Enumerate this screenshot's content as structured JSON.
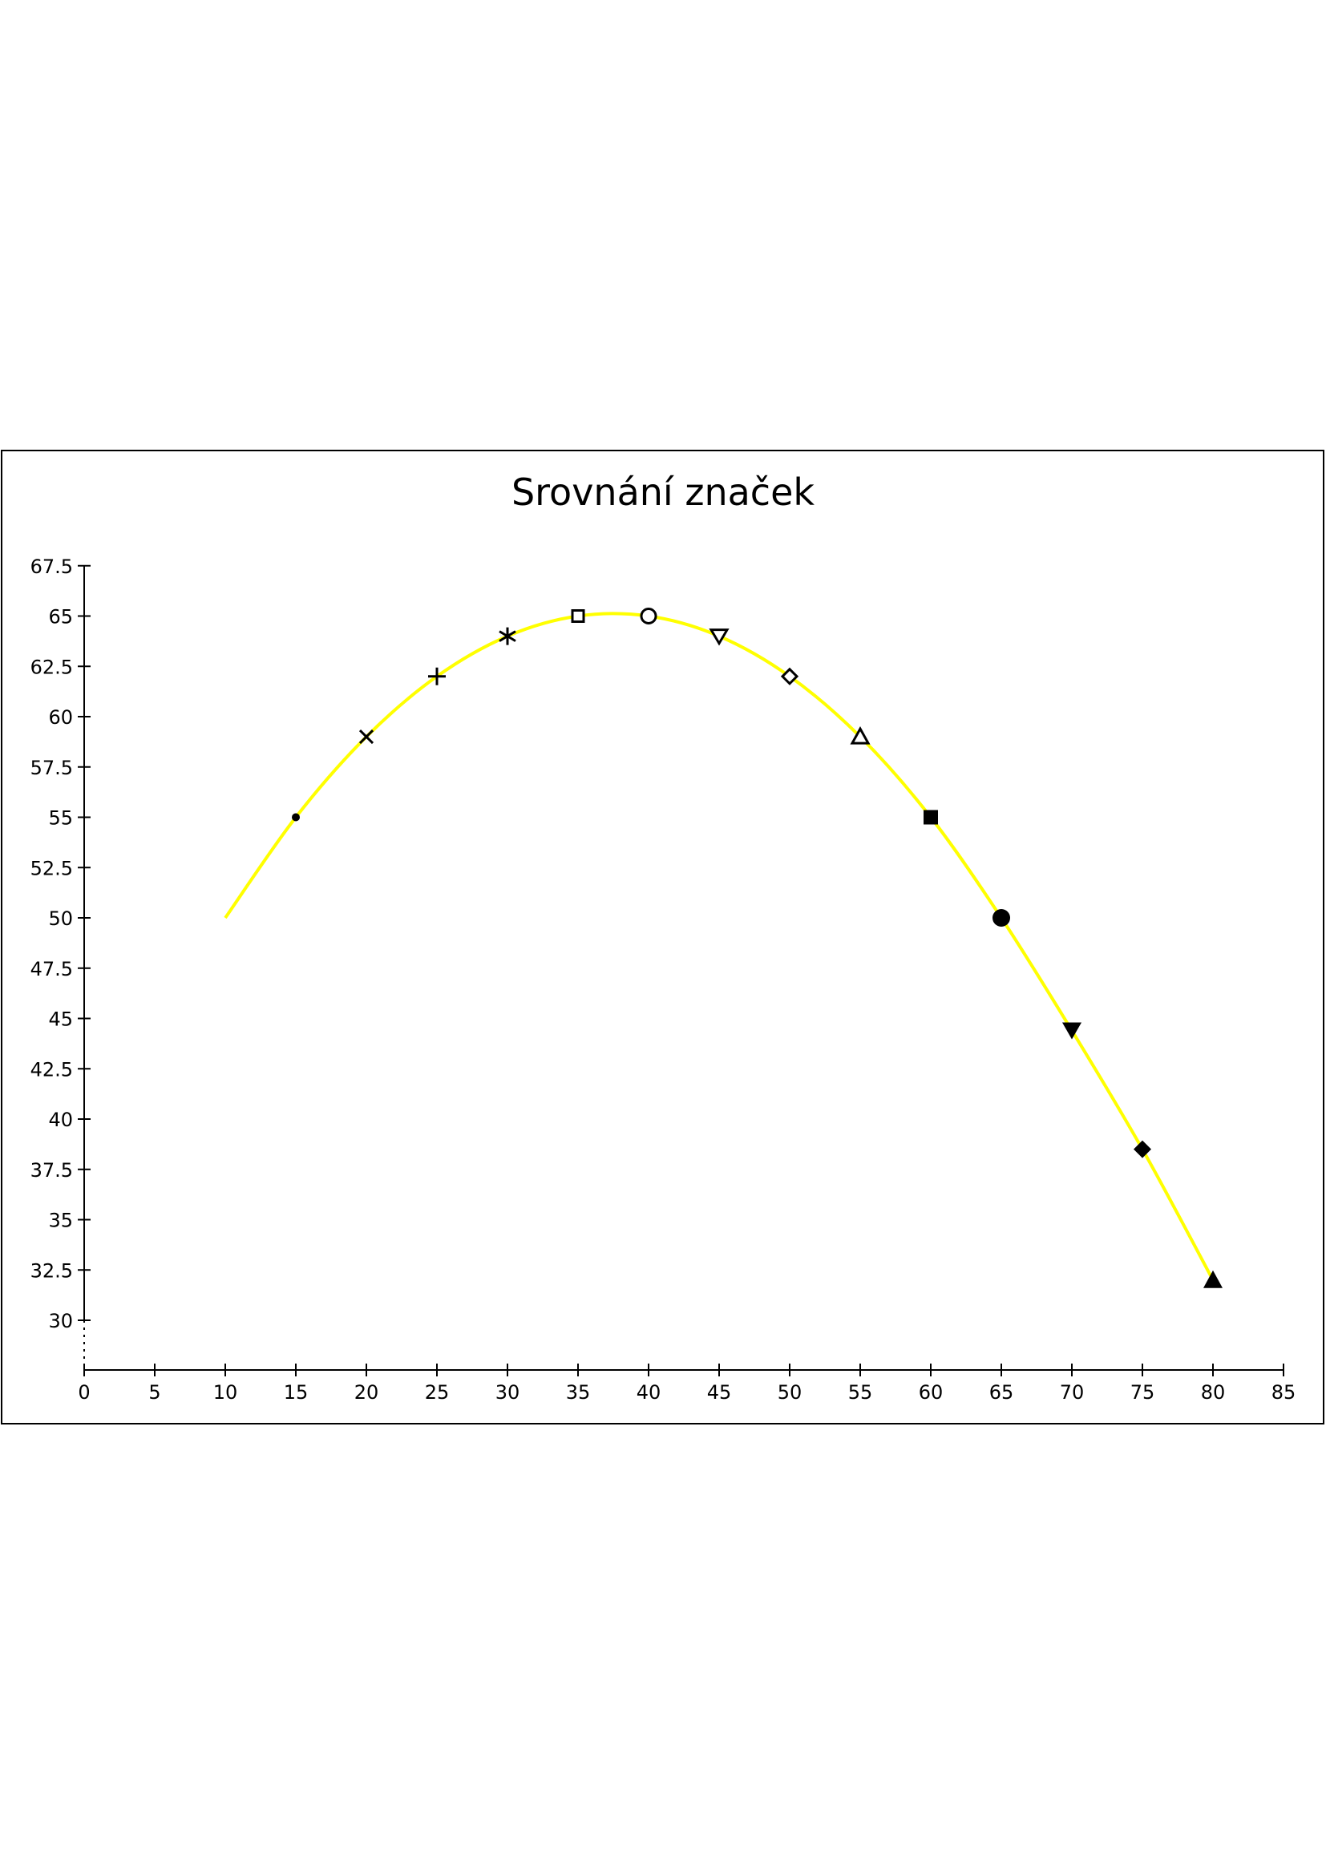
{
  "chart_data": {
    "type": "line",
    "title": "Srovnání značek",
    "xlabel": "",
    "ylabel": "",
    "xlim": [
      0,
      85
    ],
    "ylim": [
      27.5,
      67.5
    ],
    "x_ticks": [
      0,
      5,
      10,
      15,
      20,
      25,
      30,
      35,
      40,
      45,
      50,
      55,
      60,
      65,
      70,
      75,
      80,
      85
    ],
    "y_ticks": [
      30,
      32.5,
      35,
      37.5,
      40,
      42.5,
      45,
      47.5,
      50,
      52.5,
      55,
      57.5,
      60,
      62.5,
      65,
      67.5
    ],
    "x_tick_labels": [
      "0",
      "5",
      "10",
      "15",
      "20",
      "25",
      "30",
      "35",
      "40",
      "45",
      "50",
      "55",
      "60",
      "65",
      "70",
      "75",
      "80",
      "85"
    ],
    "y_tick_labels": [
      "30",
      "32.5",
      "35",
      "37.5",
      "40",
      "42.5",
      "45",
      "47.5",
      "50",
      "52.5",
      "55",
      "57.5",
      "60",
      "62.5",
      "65",
      "67.5"
    ],
    "grid": false,
    "line_color": "#ffff00",
    "marker_color": "#000000",
    "points": [
      {
        "x": 10,
        "y": 50,
        "marker": "none"
      },
      {
        "x": 15,
        "y": 55,
        "marker": "dot"
      },
      {
        "x": 20,
        "y": 59,
        "marker": "cross"
      },
      {
        "x": 25,
        "y": 62,
        "marker": "plus"
      },
      {
        "x": 30,
        "y": 64,
        "marker": "asterisk"
      },
      {
        "x": 35,
        "y": 65,
        "marker": "square-open"
      },
      {
        "x": 40,
        "y": 65,
        "marker": "circle-open"
      },
      {
        "x": 45,
        "y": 64,
        "marker": "triangle-down-open"
      },
      {
        "x": 50,
        "y": 62,
        "marker": "diamond-open"
      },
      {
        "x": 55,
        "y": 59,
        "marker": "triangle-up-open"
      },
      {
        "x": 60,
        "y": 55,
        "marker": "square-filled"
      },
      {
        "x": 65,
        "y": 50,
        "marker": "circle-filled"
      },
      {
        "x": 70,
        "y": 44.4,
        "marker": "triangle-down-filled"
      },
      {
        "x": 75,
        "y": 38.5,
        "marker": "diamond-filled"
      },
      {
        "x": 80,
        "y": 32,
        "marker": "triangle-up-filled"
      }
    ]
  }
}
